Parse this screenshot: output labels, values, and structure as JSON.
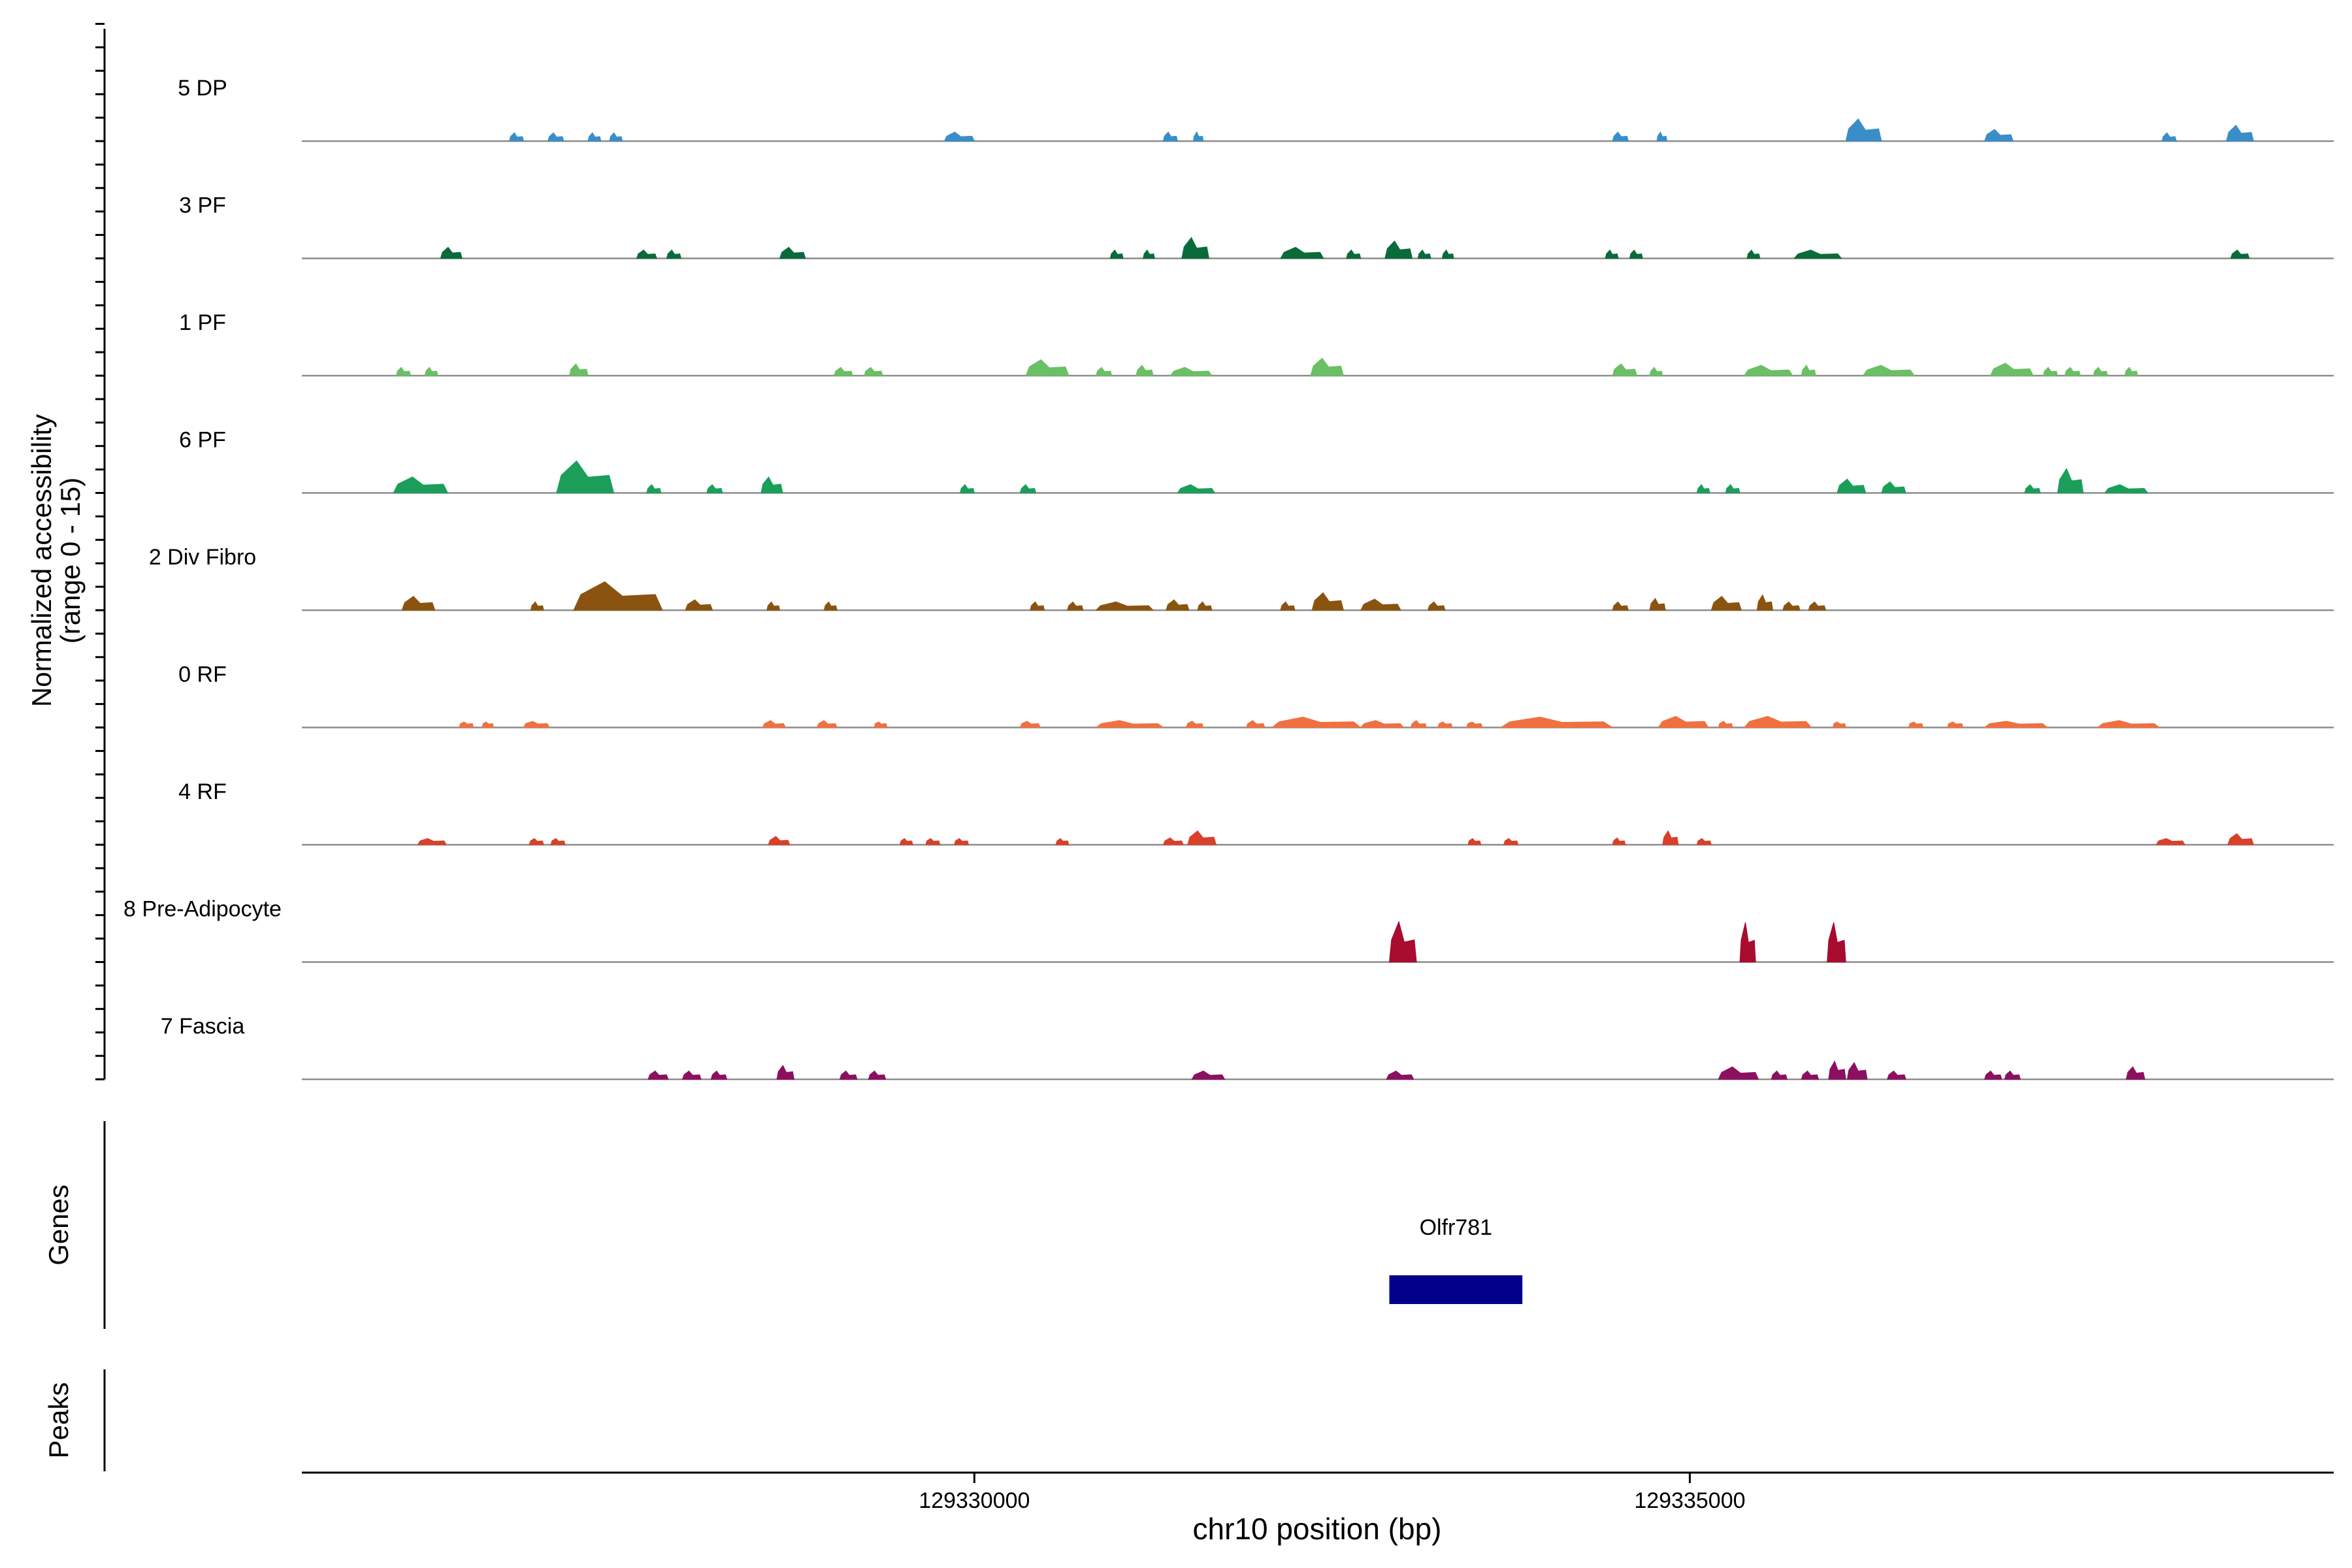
{
  "chart_data": {
    "type": "area",
    "genome_region": {
      "chrom": "chr10",
      "start": 129325300,
      "end": 129339500
    },
    "xlabel": "chr10 position (bp)",
    "x_ticks": [
      {
        "value": 129330000,
        "label": "129330000"
      },
      {
        "value": 129335000,
        "label": "129335000"
      }
    ],
    "coverage_panel": {
      "ylabel_line1": "Normalized accessibility",
      "ylabel_line2": "(range 0 - 15)",
      "ylim": [
        0,
        15
      ]
    },
    "genes_panel": {
      "ylabel": "Genes",
      "genes": [
        {
          "name": "Olfr781",
          "start": 129332900,
          "end": 129333830,
          "color": "#00008B"
        }
      ]
    },
    "peaks_panel": {
      "ylabel": "Peaks"
    },
    "series": [
      {
        "name": "5 DP",
        "color": "#3a8ec8",
        "peaks": [
          [
            129326750,
            129326850,
            1.2
          ],
          [
            129327020,
            129327130,
            1.2
          ],
          [
            129327300,
            129327390,
            1.2
          ],
          [
            129327450,
            129327540,
            1.2
          ],
          [
            129329790,
            129330000,
            1.3
          ],
          [
            129331320,
            129331420,
            1.3
          ],
          [
            129331530,
            129331600,
            1.3
          ],
          [
            129334460,
            129334570,
            1.3
          ],
          [
            129334770,
            129334840,
            1.3
          ],
          [
            129336090,
            129336340,
            3.2
          ],
          [
            129337060,
            129337260,
            1.7
          ],
          [
            129338300,
            129338400,
            1.2
          ],
          [
            129338750,
            129338940,
            2.3
          ]
        ]
      },
      {
        "name": "3 PF",
        "color": "#0a6b3a",
        "peaks": [
          [
            129326270,
            129326420,
            1.6
          ],
          [
            129327640,
            129327780,
            1.2
          ],
          [
            129327850,
            129327950,
            1.2
          ],
          [
            129328640,
            129328820,
            1.6
          ],
          [
            129330950,
            129331040,
            1.2
          ],
          [
            129331180,
            129331260,
            1.2
          ],
          [
            129331450,
            129331640,
            3.0
          ],
          [
            129332140,
            129332440,
            1.6
          ],
          [
            129332600,
            129332700,
            1.2
          ],
          [
            129332870,
            129333060,
            2.5
          ],
          [
            129333100,
            129333190,
            1.2
          ],
          [
            129333270,
            129333350,
            1.2
          ],
          [
            129334410,
            129334500,
            1.2
          ],
          [
            129334580,
            129334670,
            1.2
          ],
          [
            129335400,
            129335490,
            1.2
          ],
          [
            129335730,
            129336060,
            1.2
          ],
          [
            129338780,
            129338910,
            1.2
          ]
        ]
      },
      {
        "name": "1 PF",
        "color": "#6bbf64",
        "peaks": [
          [
            129325960,
            129326060,
            1.2
          ],
          [
            129326160,
            129326250,
            1.2
          ],
          [
            129327170,
            129327300,
            1.7
          ],
          [
            129329020,
            129329150,
            1.2
          ],
          [
            129329230,
            129329360,
            1.2
          ],
          [
            129330360,
            129330660,
            2.3
          ],
          [
            129330850,
            129330960,
            1.2
          ],
          [
            129331130,
            129331250,
            1.5
          ],
          [
            129331370,
            129331660,
            1.2
          ],
          [
            129332350,
            129332580,
            2.5
          ],
          [
            129334460,
            129334630,
            1.7
          ],
          [
            129334720,
            129334810,
            1.2
          ],
          [
            129335380,
            129335720,
            1.5
          ],
          [
            129335780,
            129335880,
            1.5
          ],
          [
            129336210,
            129336570,
            1.5
          ],
          [
            129337100,
            129337400,
            1.8
          ],
          [
            129337470,
            129337570,
            1.2
          ],
          [
            129337620,
            129337730,
            1.2
          ],
          [
            129337820,
            129337920,
            1.2
          ],
          [
            129338040,
            129338130,
            1.2
          ]
        ]
      },
      {
        "name": "6 PF",
        "color": "#1b9e5a",
        "peaks": [
          [
            129325940,
            129326320,
            2.3
          ],
          [
            129327080,
            129327480,
            4.6
          ],
          [
            129327710,
            129327810,
            1.2
          ],
          [
            129328130,
            129328240,
            1.2
          ],
          [
            129328510,
            129328660,
            2.3
          ],
          [
            129329900,
            129330000,
            1.2
          ],
          [
            129330320,
            129330430,
            1.2
          ],
          [
            129331420,
            129331680,
            1.2
          ],
          [
            129335050,
            129335140,
            1.2
          ],
          [
            129335250,
            129335350,
            1.2
          ],
          [
            129336030,
            129336230,
            2.0
          ],
          [
            129336340,
            129336510,
            1.6
          ],
          [
            129337340,
            129337450,
            1.2
          ],
          [
            129337570,
            129337750,
            3.5
          ],
          [
            129337900,
            129338200,
            1.2
          ]
        ]
      },
      {
        "name": "2 Div Fibro",
        "color": "#8a5410",
        "peaks": [
          [
            129326000,
            129326230,
            2.0
          ],
          [
            129326900,
            129326990,
            1.2
          ],
          [
            129327200,
            129327820,
            4.1
          ],
          [
            129327980,
            129328170,
            1.5
          ],
          [
            129328550,
            129328640,
            1.2
          ],
          [
            129328950,
            129329040,
            1.2
          ],
          [
            129330390,
            129330490,
            1.2
          ],
          [
            129330650,
            129330760,
            1.2
          ],
          [
            129330850,
            129331250,
            1.2
          ],
          [
            129331340,
            129331500,
            1.5
          ],
          [
            129331560,
            129331660,
            1.2
          ],
          [
            129332140,
            129332240,
            1.2
          ],
          [
            129332360,
            129332580,
            2.5
          ],
          [
            129332700,
            129332980,
            1.6
          ],
          [
            129333170,
            129333290,
            1.2
          ],
          [
            129334460,
            129334570,
            1.2
          ],
          [
            129334720,
            129334830,
            1.7
          ],
          [
            129335150,
            129335360,
            2.0
          ],
          [
            129335470,
            129335580,
            2.2
          ],
          [
            129335650,
            129335770,
            1.2
          ],
          [
            129335830,
            129335950,
            1.2
          ]
        ]
      },
      {
        "name": "0 RF",
        "color": "#f07040",
        "peaks": [
          [
            129326400,
            129326500,
            0.8
          ],
          [
            129326560,
            129326640,
            0.8
          ],
          [
            129326850,
            129327030,
            0.9
          ],
          [
            129328520,
            129328680,
            1.0
          ],
          [
            129328900,
            129329040,
            1.0
          ],
          [
            129329300,
            129329390,
            0.8
          ],
          [
            129330320,
            129330460,
            0.9
          ],
          [
            129330850,
            129331320,
            1.0
          ],
          [
            129331480,
            129331600,
            0.9
          ],
          [
            129331900,
            129332030,
            1.0
          ],
          [
            129332080,
            129332700,
            1.5
          ],
          [
            129332700,
            129333000,
            1.0
          ],
          [
            129333050,
            129333160,
            1.0
          ],
          [
            129333240,
            129333340,
            0.8
          ],
          [
            129333440,
            129333550,
            0.8
          ],
          [
            129333680,
            129334460,
            1.5
          ],
          [
            129334780,
            129335130,
            1.6
          ],
          [
            129335200,
            129335300,
            0.9
          ],
          [
            129335380,
            129335850,
            1.6
          ],
          [
            129336000,
            129336090,
            0.8
          ],
          [
            129336530,
            129336630,
            0.8
          ],
          [
            129336800,
            129336910,
            0.8
          ],
          [
            129337060,
            129337500,
            0.9
          ],
          [
            129337850,
            129338280,
            1.0
          ]
        ]
      },
      {
        "name": "4 RF",
        "color": "#d8402a",
        "peaks": [
          [
            129326110,
            129326310,
            0.9
          ],
          [
            129326890,
            129326990,
            0.9
          ],
          [
            129327040,
            129327140,
            0.9
          ],
          [
            129328560,
            129328710,
            1.2
          ],
          [
            129329480,
            129329570,
            0.9
          ],
          [
            129329660,
            129329760,
            0.9
          ],
          [
            129329860,
            129329960,
            0.9
          ],
          [
            129330570,
            129330660,
            0.9
          ],
          [
            129331320,
            129331460,
            1.0
          ],
          [
            129331490,
            129331690,
            2.0
          ],
          [
            129333450,
            129333540,
            0.9
          ],
          [
            129333700,
            129333800,
            0.9
          ],
          [
            129334460,
            129334550,
            1.0
          ],
          [
            129334810,
            129334920,
            2.0
          ],
          [
            129335050,
            129335150,
            0.9
          ],
          [
            129338260,
            129338460,
            0.9
          ],
          [
            129338760,
            129338940,
            1.6
          ]
        ]
      },
      {
        "name": "8 Pre-Adipocyte",
        "color": "#a80c2e",
        "peaks": [
          [
            129332900,
            129333090,
            5.8
          ],
          [
            129335350,
            129335460,
            5.7
          ],
          [
            129335960,
            129336090,
            5.7
          ]
        ]
      },
      {
        "name": "7 Fascia",
        "color": "#8c1060",
        "peaks": [
          [
            129327720,
            129327860,
            1.2
          ],
          [
            129327960,
            129328090,
            1.2
          ],
          [
            129328160,
            129328270,
            1.2
          ],
          [
            129328620,
            129328740,
            2.0
          ],
          [
            129329060,
            129329180,
            1.2
          ],
          [
            129329260,
            129329380,
            1.2
          ],
          [
            129331520,
            129331750,
            1.2
          ],
          [
            129332880,
            129333070,
            1.2
          ],
          [
            129335200,
            129335480,
            1.8
          ],
          [
            129335570,
            129335680,
            1.2
          ],
          [
            129335780,
            129335900,
            1.2
          ],
          [
            129335970,
            129336090,
            2.6
          ],
          [
            129336100,
            129336240,
            2.4
          ],
          [
            129336380,
            129336510,
            1.2
          ],
          [
            129337060,
            129337180,
            1.2
          ],
          [
            129337200,
            129337310,
            1.2
          ],
          [
            129338050,
            129338180,
            1.8
          ]
        ]
      }
    ]
  }
}
